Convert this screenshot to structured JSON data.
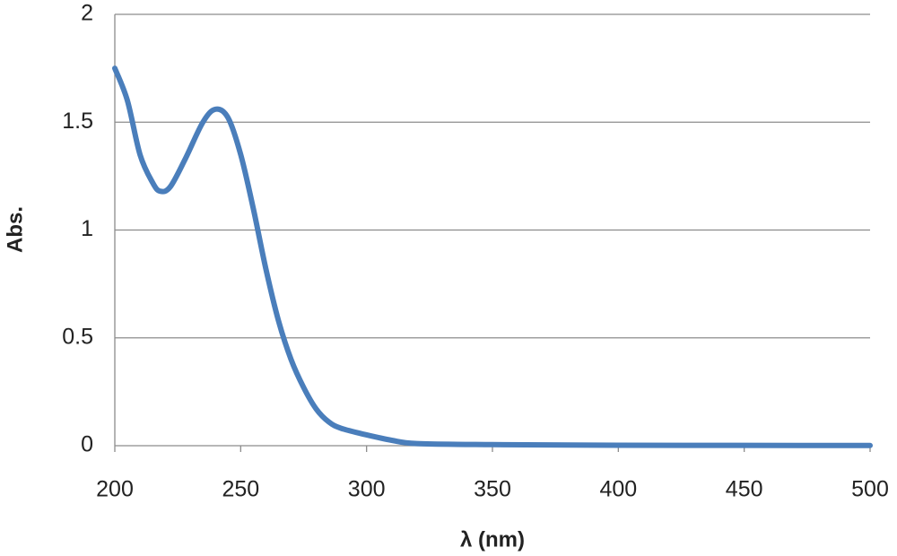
{
  "chart_data": {
    "type": "line",
    "x_label": "λ (nm)",
    "y_label": "Abs.",
    "x": [
      200,
      205,
      210,
      215,
      218,
      222,
      228,
      235,
      240,
      245,
      250,
      255,
      260,
      265,
      270,
      275,
      280,
      285,
      290,
      300,
      310,
      320,
      350,
      400,
      500
    ],
    "series": [
      {
        "name": "Abs.",
        "color": "#4a7ebb",
        "values": [
          1.75,
          1.6,
          1.35,
          1.22,
          1.18,
          1.2,
          1.33,
          1.5,
          1.56,
          1.52,
          1.35,
          1.1,
          0.82,
          0.58,
          0.4,
          0.27,
          0.17,
          0.11,
          0.08,
          0.05,
          0.025,
          0.01,
          0.005,
          0.002,
          0.001
        ]
      }
    ],
    "xlim": [
      200,
      500
    ],
    "ylim": [
      0,
      2
    ],
    "xticks": [
      200,
      250,
      300,
      350,
      400,
      450,
      500
    ],
    "yticks": [
      0,
      0.5,
      1,
      1.5,
      2
    ],
    "grid": true
  }
}
